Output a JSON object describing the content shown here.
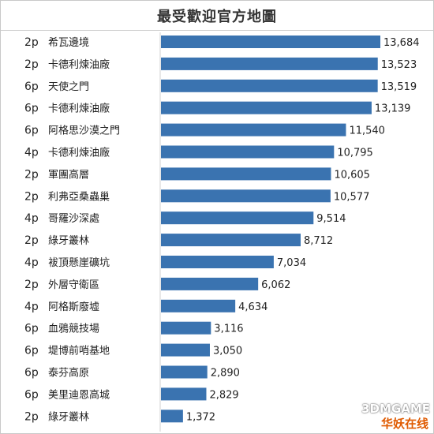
{
  "chart_data": {
    "type": "bar",
    "orientation": "horizontal",
    "title": "最受歡迎官方地圖",
    "bar_color": "#3a73b0",
    "xlim": [
      0,
      14000
    ],
    "grid": false,
    "rows": [
      {
        "players": "2p",
        "map": "希瓦邊境",
        "value": 13684,
        "value_label": "13,684"
      },
      {
        "players": "2p",
        "map": "卡德利煉油廠",
        "value": 13523,
        "value_label": "13,523"
      },
      {
        "players": "6p",
        "map": "天使之門",
        "value": 13519,
        "value_label": "13,519"
      },
      {
        "players": "6p",
        "map": "卡德利煉油廠",
        "value": 13139,
        "value_label": "13,139"
      },
      {
        "players": "6p",
        "map": "阿格思沙漠之門",
        "value": 11540,
        "value_label": "11,540"
      },
      {
        "players": "4p",
        "map": "卡德利煉油廠",
        "value": 10795,
        "value_label": "10,795"
      },
      {
        "players": "2p",
        "map": "軍團高層",
        "value": 10605,
        "value_label": "10,605"
      },
      {
        "players": "2p",
        "map": "利弗亞桑蟲巢",
        "value": 10577,
        "value_label": "10,577"
      },
      {
        "players": "4p",
        "map": "哥羅沙深處",
        "value": 9514,
        "value_label": "9,514"
      },
      {
        "players": "2p",
        "map": "綠牙叢林",
        "value": 8712,
        "value_label": "8,712"
      },
      {
        "players": "4p",
        "map": "袚頂懸崖礦坑",
        "value": 7034,
        "value_label": "7,034"
      },
      {
        "players": "2p",
        "map": "外層守衛區",
        "value": 6062,
        "value_label": "6,062"
      },
      {
        "players": "4p",
        "map": "阿格斯廢墟",
        "value": 4634,
        "value_label": "4,634"
      },
      {
        "players": "6p",
        "map": "血鴉競技場",
        "value": 3116,
        "value_label": "3,116"
      },
      {
        "players": "6p",
        "map": "堤博前哨基地",
        "value": 3050,
        "value_label": "3,050"
      },
      {
        "players": "6p",
        "map": "泰芬高原",
        "value": 2890,
        "value_label": "2,890"
      },
      {
        "players": "6p",
        "map": "美里迪恩高城",
        "value": 2829,
        "value_label": "2,829"
      },
      {
        "players": "2p",
        "map": "綠牙叢林",
        "value": 1372,
        "value_label": "1,372"
      }
    ]
  },
  "watermark": {
    "line1": "3DMGAME",
    "line2": "华妖在线"
  }
}
